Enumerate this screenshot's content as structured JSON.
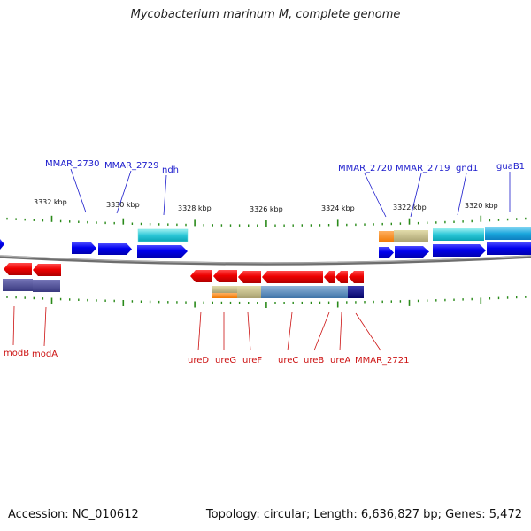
{
  "title": "Mycobacterium marinum M, complete genome",
  "footer": {
    "accession": "Accession: NC_010612",
    "stats": "Topology: circular; Length: 6,636,827 bp; Genes: 5,472"
  },
  "colors": {
    "forward_gene": "#0000ee",
    "reverse_gene": "#ee0000",
    "forward_label": "#1a1acc",
    "reverse_label": "#cc1111",
    "tick": "#2a8a1a",
    "backbone": "#7a7a7a"
  },
  "scale_labels": [
    "3332 kbp",
    "3330 kbp",
    "3328 kbp",
    "3326 kbp",
    "3324 kbp",
    "3322 kbp",
    "3320 kbp"
  ],
  "forward_genes": [
    "MMAR_2730",
    "MMAR_2729",
    "ndh",
    "MMAR_2720",
    "MMAR_2719",
    "gnd1",
    "guaB1"
  ],
  "reverse_genes": [
    "modB",
    "modA",
    "ureD",
    "ureG",
    "ureF",
    "ureC",
    "ureB",
    "ureA",
    "MMAR_2721"
  ]
}
